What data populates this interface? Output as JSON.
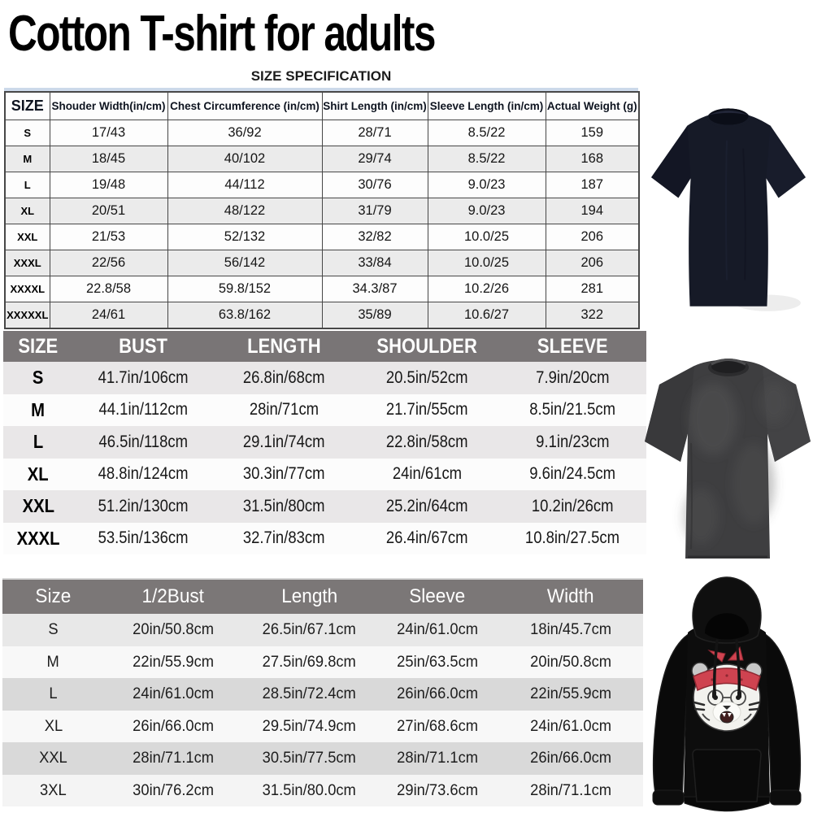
{
  "page": {
    "title": "Cotton T-shirt for adults",
    "section_heading": "SIZE SPECIFICATION"
  },
  "colors": {
    "table_header_gray": "#7a7676",
    "row_alt_light": "#ebebeb",
    "row_alt_mid": "#d9d9d9",
    "spec_table_top_strip": "#ccd9ea",
    "tshirt_navy": "#161a27",
    "tshirt_washed_gray": "#3f3f41",
    "hoodie_black": "#0c0c0c",
    "bandana_red": "#cf4350"
  },
  "spec_table": {
    "columns": [
      "SIZE",
      "Shouder Width(in/cm)",
      "Chest Circumference (in/cm)",
      "Shirt Length (in/cm)",
      "Sleeve Length (in/cm)",
      "Actual Weight (g)"
    ],
    "rows": [
      [
        "S",
        "17/43",
        "36/92",
        "28/71",
        "8.5/22",
        "159"
      ],
      [
        "M",
        "18/45",
        "40/102",
        "29/74",
        "8.5/22",
        "168"
      ],
      [
        "L",
        "19/48",
        "44/112",
        "30/76",
        "9.0/23",
        "187"
      ],
      [
        "XL",
        "20/51",
        "48/122",
        "31/79",
        "9.0/23",
        "194"
      ],
      [
        "XXL",
        "21/53",
        "52/132",
        "32/82",
        "10.0/25",
        "206"
      ],
      [
        "XXXL",
        "22/56",
        "56/142",
        "33/84",
        "10.0/25",
        "206"
      ],
      [
        "XXXXL",
        "22.8/58",
        "59.8/152",
        "34.3/87",
        "10.2/26",
        "281"
      ],
      [
        "XXXXXL",
        "24/61",
        "63.8/162",
        "35/89",
        "10.6/27",
        "322"
      ]
    ]
  },
  "bust_table": {
    "columns": [
      "SIZE",
      "BUST",
      "LENGTH",
      "SHOULDER",
      "SLEEVE"
    ],
    "rows": [
      [
        "S",
        "41.7in/106cm",
        "26.8in/68cm",
        "20.5in/52cm",
        "7.9in/20cm"
      ],
      [
        "M",
        "44.1in/112cm",
        "28in/71cm",
        "21.7in/55cm",
        "8.5in/21.5cm"
      ],
      [
        "L",
        "46.5in/118cm",
        "29.1in/74cm",
        "22.8in/58cm",
        "9.1in/23cm"
      ],
      [
        "XL",
        "48.8in/124cm",
        "30.3in/77cm",
        "24in/61cm",
        "9.6in/24.5cm"
      ],
      [
        "XXL",
        "51.2in/130cm",
        "31.5in/80cm",
        "25.2in/64cm",
        "10.2in/26cm"
      ],
      [
        "XXXL",
        "53.5in/136cm",
        "32.7in/83cm",
        "26.4in/67cm",
        "10.8in/27.5cm"
      ]
    ]
  },
  "hoodie_table": {
    "columns": [
      "Size",
      "1/2Bust",
      "Length",
      "Sleeve",
      "Width"
    ],
    "rows": [
      [
        "S",
        "20in/50.8cm",
        "26.5in/67.1cm",
        "24in/61.0cm",
        "18in/45.7cm"
      ],
      [
        "M",
        "22in/55.9cm",
        "27.5in/69.8cm",
        "25in/63.5cm",
        "20in/50.8cm"
      ],
      [
        "L",
        "24in/61.0cm",
        "28.5in/72.4cm",
        "26in/66.0cm",
        "22in/55.9cm"
      ],
      [
        "XL",
        "26in/66.0cm",
        "29.5in/74.9cm",
        "27in/68.6cm",
        "24in/61.0cm"
      ],
      [
        "XXL",
        "28in/71.1cm",
        "30.5in/77.5cm",
        "28in/71.1cm",
        "26in/66.0cm"
      ],
      [
        "3XL",
        "30in/76.2cm",
        "31.5in/80.0cm",
        "29in/73.6cm",
        "28in/71.1cm"
      ]
    ]
  },
  "images": {
    "tshirt_classic_alt": "dark navy classic fit t-shirt",
    "tshirt_washed_alt": "washed black oversized t-shirt",
    "hoodie_alt": "black hoodie with tiger bandana graphic"
  }
}
